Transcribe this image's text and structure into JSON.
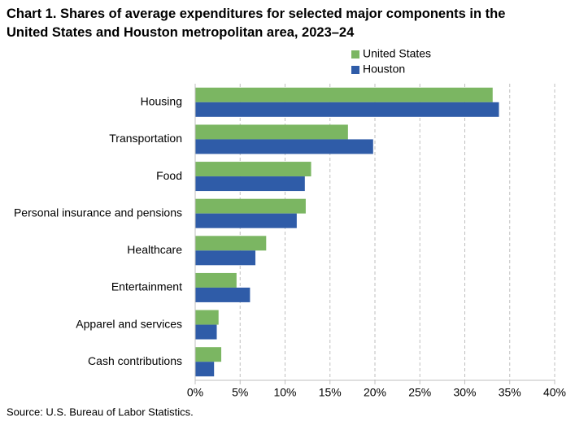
{
  "chart_data": {
    "type": "hbar",
    "title": "Chart 1. Shares of average expenditures for selected major components in the United States and Houston metropolitan area, 2023–24",
    "categories": [
      "Housing",
      "Transportation",
      "Food",
      "Personal insurance and pensions",
      "Healthcare",
      "Entertainment",
      "Apparel and services",
      "Cash contributions"
    ],
    "series": [
      {
        "name": "United States",
        "color": "#7bb662",
        "values": [
          33.1,
          17.0,
          12.9,
          12.3,
          7.9,
          4.6,
          2.6,
          2.9
        ]
      },
      {
        "name": "Houston",
        "color": "#2f5ca8",
        "values": [
          33.8,
          19.8,
          12.2,
          11.3,
          6.7,
          6.1,
          2.4,
          2.1
        ]
      }
    ],
    "xlim": [
      0,
      40
    ],
    "xticks": [
      {
        "value": 0,
        "label": "0%"
      },
      {
        "value": 5,
        "label": "5%"
      },
      {
        "value": 10,
        "label": "10%"
      },
      {
        "value": 15,
        "label": "15%"
      },
      {
        "value": 20,
        "label": "20%"
      },
      {
        "value": 25,
        "label": "25%"
      },
      {
        "value": 30,
        "label": "30%"
      },
      {
        "value": 35,
        "label": "35%"
      },
      {
        "value": 40,
        "label": "40%"
      }
    ],
    "grid": true,
    "source": "Source: U.S. Bureau of Labor Statistics."
  }
}
